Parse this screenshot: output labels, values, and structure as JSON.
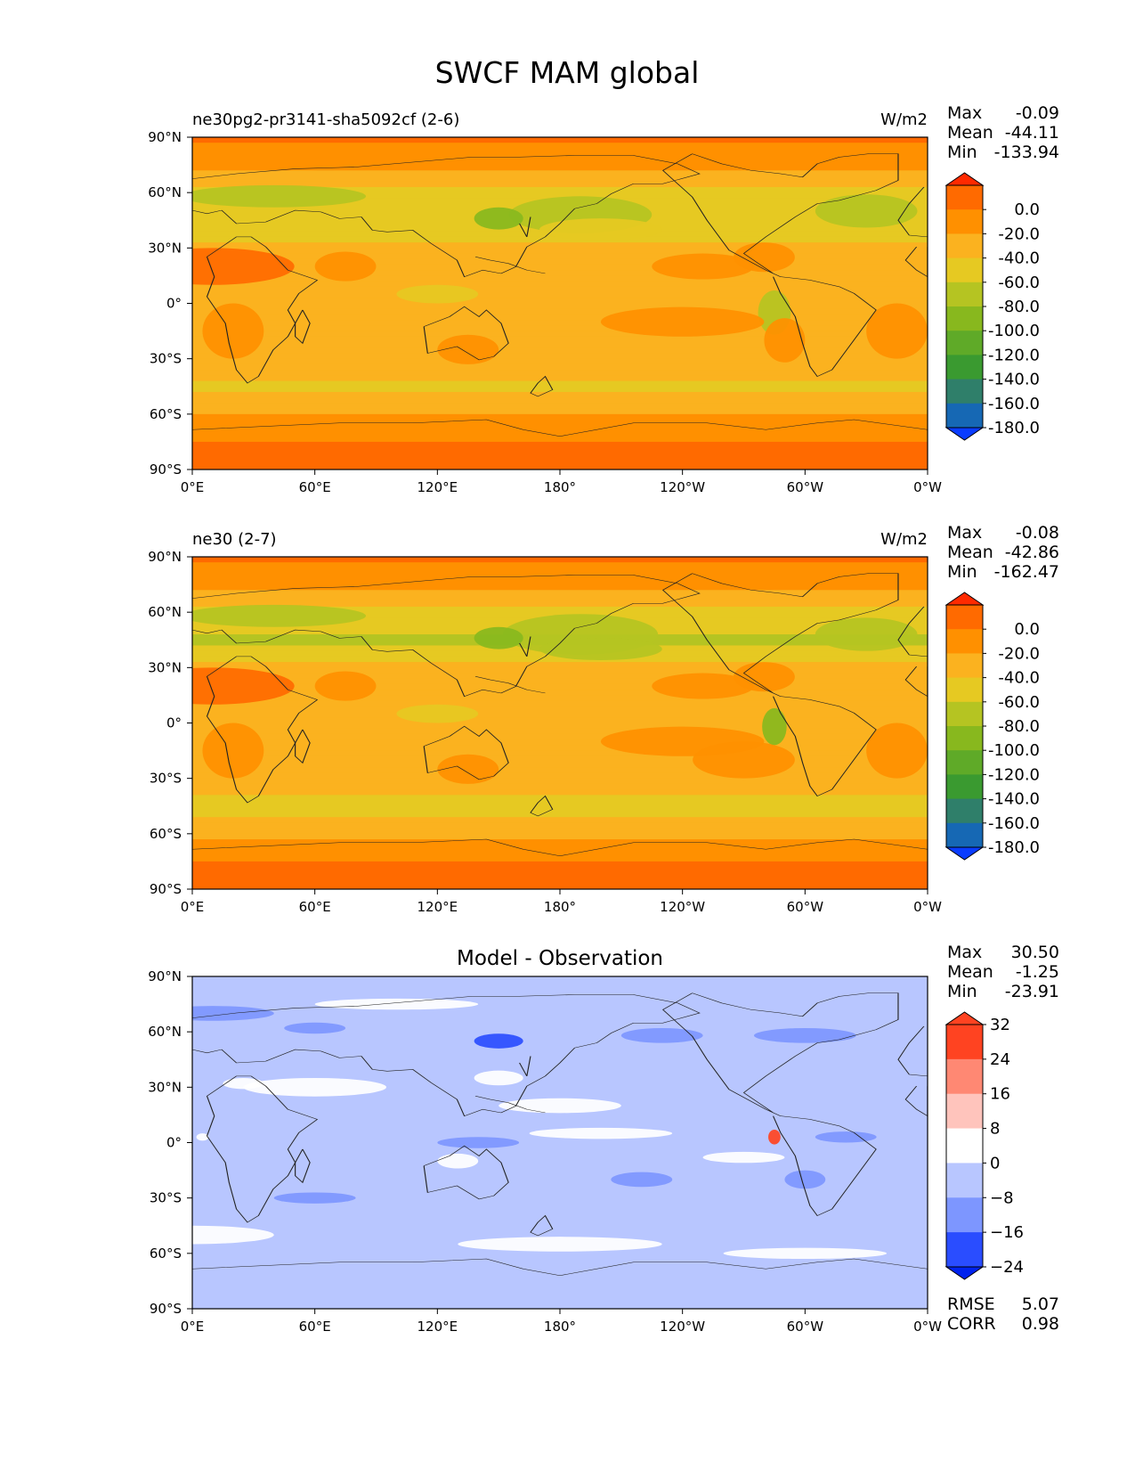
{
  "figure": {
    "title": "SWCF MAM global"
  },
  "lon_ticks": [
    "0°E",
    "60°E",
    "120°E",
    "180°",
    "120°W",
    "60°W",
    "0°W"
  ],
  "lat_ticks": [
    "90°N",
    "60°N",
    "30°N",
    "0°",
    "30°S",
    "60°S",
    "90°S"
  ],
  "colors": {
    "test_levels": [
      "#ff2a00",
      "#ff6a00",
      "#ff9000",
      "#fbb21f",
      "#e6c922",
      "#b5c422",
      "#88b81e",
      "#5faa28",
      "#3a9a30",
      "#2f7f6a",
      "#1668b4",
      "#0a3cff"
    ],
    "diff_levels": [
      "#ff4321",
      "#ff8873",
      "#ffc4bc",
      "#ffffff",
      "#b8c6ff",
      "#7d96ff",
      "#2a4dff",
      "#0022ee"
    ]
  },
  "panels": [
    {
      "title_left": "ne30pg2-pr3141-sha5092cf (2-6)",
      "title_center": "",
      "units": "W/m2",
      "stats": [
        {
          "label": "Max",
          "value": "-0.09"
        },
        {
          "label": "Mean",
          "value": "-44.11"
        },
        {
          "label": "Min",
          "value": "-133.94"
        }
      ],
      "colorbar_type": "test",
      "colorbar_labels": [
        "0.0",
        "-20.0",
        "-40.0",
        "-60.0",
        "-80.0",
        "-100.0",
        "-120.0",
        "-140.0",
        "-160.0",
        "-180.0"
      ],
      "metrics": []
    },
    {
      "title_left": "ne30 (2-7)",
      "title_center": "",
      "units": "W/m2",
      "stats": [
        {
          "label": "Max",
          "value": "-0.08"
        },
        {
          "label": "Mean",
          "value": "-42.86"
        },
        {
          "label": "Min",
          "value": "-162.47"
        }
      ],
      "colorbar_type": "test",
      "colorbar_labels": [
        "0.0",
        "-20.0",
        "-40.0",
        "-60.0",
        "-80.0",
        "-100.0",
        "-120.0",
        "-140.0",
        "-160.0",
        "-180.0"
      ],
      "metrics": []
    },
    {
      "title_left": "",
      "title_center": "Model - Observation",
      "units": "",
      "stats": [
        {
          "label": "Max",
          "value": "30.50"
        },
        {
          "label": "Mean",
          "value": "-1.25"
        },
        {
          "label": "Min",
          "value": "-23.91"
        }
      ],
      "colorbar_type": "diff",
      "colorbar_labels": [
        "32",
        "24",
        "16",
        "8",
        "0",
        "−8",
        "−16",
        "−24"
      ],
      "metrics": [
        {
          "label": "RMSE",
          "value": "5.07"
        },
        {
          "label": "CORR",
          "value": "0.98"
        }
      ]
    }
  ],
  "chart_data": [
    {
      "type": "heatmap",
      "title": "ne30pg2-pr3141-sha5092cf (2-6)",
      "units": "W/m2",
      "x_range": [
        0,
        360
      ],
      "y_range": [
        -90,
        90
      ],
      "levels": [
        0,
        -20,
        -40,
        -60,
        -80,
        -100,
        -120,
        -140,
        -160,
        -180
      ],
      "zonal_profile": {
        "lat": [
          90,
          75,
          60,
          45,
          30,
          15,
          0,
          -15,
          -30,
          -45,
          -60,
          -75,
          -90
        ],
        "value": [
          -15,
          -35,
          -65,
          -80,
          -55,
          -45,
          -55,
          -45,
          -45,
          -65,
          -40,
          -20,
          -10
        ]
      },
      "stats": {
        "max": -0.09,
        "mean": -44.11,
        "min": -133.94
      }
    },
    {
      "type": "heatmap",
      "title": "ne30 (2-7)",
      "units": "W/m2",
      "x_range": [
        0,
        360
      ],
      "y_range": [
        -90,
        90
      ],
      "levels": [
        0,
        -20,
        -40,
        -60,
        -80,
        -100,
        -120,
        -140,
        -160,
        -180
      ],
      "zonal_profile": {
        "lat": [
          90,
          75,
          60,
          45,
          30,
          15,
          0,
          -15,
          -30,
          -45,
          -60,
          -75,
          -90
        ],
        "value": [
          -15,
          -35,
          -65,
          -85,
          -55,
          -40,
          -50,
          -40,
          -45,
          -70,
          -45,
          -20,
          -10
        ]
      },
      "stats": {
        "max": -0.08,
        "mean": -42.86,
        "min": -162.47
      }
    },
    {
      "type": "heatmap",
      "title": "Model - Observation",
      "units": "",
      "x_range": [
        0,
        360
      ],
      "y_range": [
        -90,
        90
      ],
      "levels": [
        32,
        24,
        16,
        8,
        0,
        -8,
        -16,
        -24
      ],
      "zonal_profile": {
        "lat": [
          90,
          75,
          60,
          45,
          30,
          15,
          0,
          -15,
          -30,
          -45,
          -60,
          -75,
          -90
        ],
        "value": [
          -2,
          -4,
          -6,
          -4,
          -1,
          0,
          -2,
          -3,
          -2,
          -3,
          -2,
          0,
          -2
        ]
      },
      "stats": {
        "max": 30.5,
        "mean": -1.25,
        "min": -23.91,
        "rmse": 5.07,
        "corr": 0.98
      }
    }
  ]
}
